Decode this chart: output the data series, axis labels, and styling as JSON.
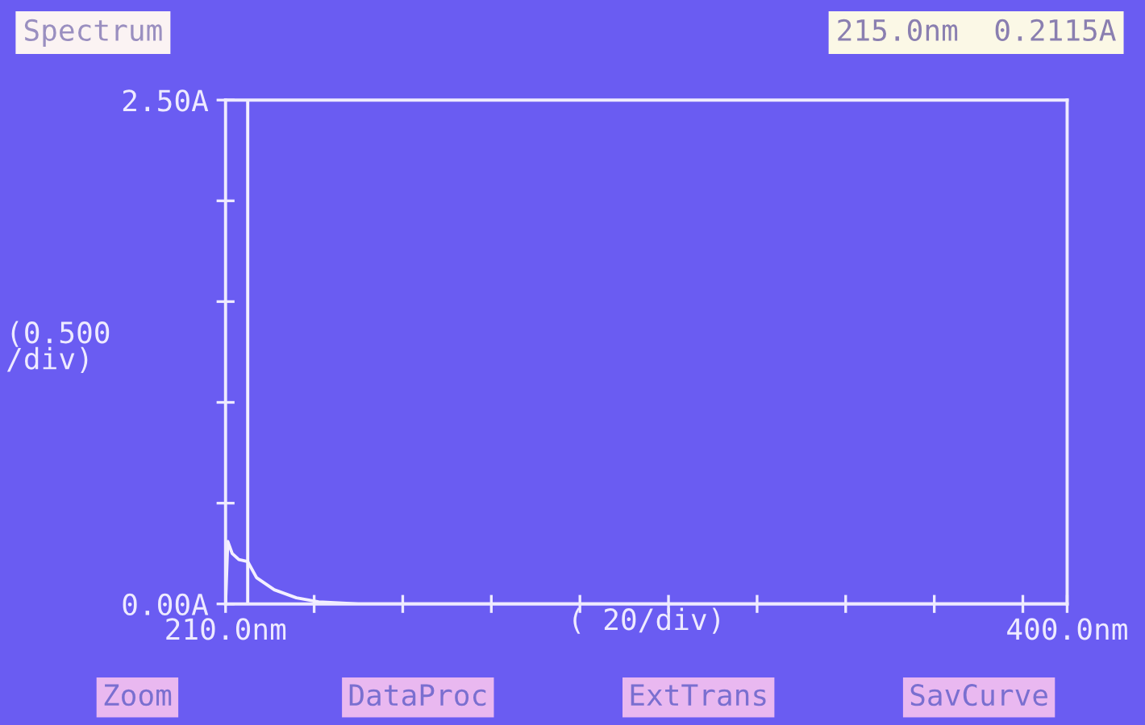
{
  "chart_data": {
    "type": "line",
    "title": "Spectrum",
    "xlabel": "( 20/div)",
    "ylabel": "(0.500\n/div)",
    "x": [
      210,
      210.5,
      211.5,
      213,
      215,
      217,
      221,
      226,
      231,
      240,
      300,
      400
    ],
    "series": [
      {
        "color": "#f4f0ff",
        "values": [
          0,
          0.31,
          0.25,
          0.22,
          0.21,
          0.13,
          0.07,
          0.03,
          0.01,
          0,
          0,
          0
        ]
      }
    ],
    "xlim": [
      210,
      400
    ],
    "xticks": [
      {
        "value": 210,
        "label": "210.0nm"
      },
      {
        "value": 230,
        "label": null
      },
      {
        "value": 250,
        "label": null
      },
      {
        "value": 270,
        "label": null
      },
      {
        "value": 290,
        "label": null
      },
      {
        "value": 310,
        "label": null
      },
      {
        "value": 330,
        "label": null
      },
      {
        "value": 350,
        "label": null
      },
      {
        "value": 370,
        "label": null
      },
      {
        "value": 390,
        "label": null
      },
      {
        "value": 400,
        "label": "400.0nm"
      }
    ],
    "ylim": [
      0,
      2.5
    ],
    "yticks": [
      {
        "value": 0,
        "label": "0.00A"
      },
      {
        "value": 0.5,
        "label": null
      },
      {
        "value": 1.0,
        "label": null
      },
      {
        "value": 1.5,
        "label": null
      },
      {
        "value": 2.0,
        "label": null
      },
      {
        "value": 2.5,
        "label": "2.50A"
      }
    ],
    "ref_lines": [
      {
        "axis": "x",
        "value": 215,
        "color": "#f4f0ff"
      }
    ],
    "annotations": [
      "215.0nm  0.2115A",
      "Zoom",
      "DataProc",
      "ExtTrans",
      "SavCurve"
    ],
    "grid": false,
    "marker": "none",
    "line_style": "solid"
  }
}
